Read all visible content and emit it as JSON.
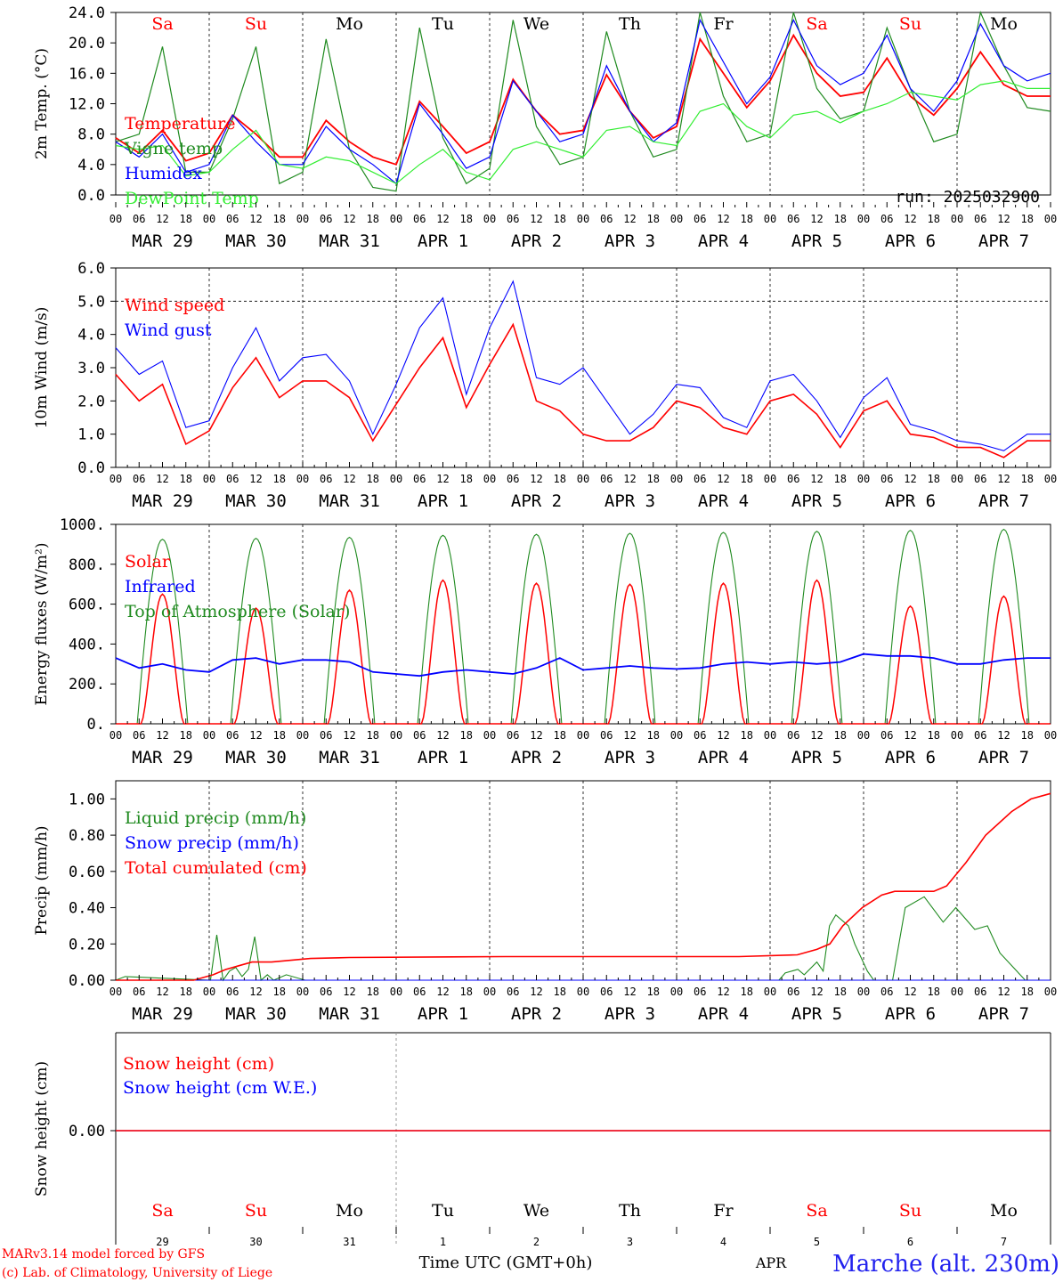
{
  "footer": {
    "credit_line1": "MARv3.14 model forced by GFS",
    "credit_line2": "(c) Lab. of Climatology, University of Liege",
    "xaxis_title": "Time UTC (GMT+0h)",
    "month": "APR",
    "station": "Marche (alt. 230m)"
  },
  "colors": {
    "red": "#ff0000",
    "green": "#1f8a1f",
    "blue": "#0000ff",
    "lightgreen": "#33ee33",
    "weekend": "#ff0000",
    "weekday": "#000000"
  },
  "days": {
    "weekdays": [
      "Sa",
      "Su",
      "Mo",
      "Tu",
      "We",
      "Th",
      "Fr",
      "Sa",
      "Su",
      "Mo"
    ],
    "weekend": [
      true,
      true,
      false,
      false,
      false,
      false,
      false,
      true,
      true,
      false
    ],
    "date_labels": [
      "MAR 29",
      "MAR 30",
      "MAR 31",
      "APR  1",
      "APR  2",
      "APR  3",
      "APR  4",
      "APR  5",
      "APR  6",
      "APR  7"
    ],
    "day_numbers": [
      "29",
      "30",
      "31",
      "1",
      "2",
      "3",
      "4",
      "5",
      "6",
      "7"
    ],
    "hour_ticks": [
      "00",
      "06",
      "12",
      "18"
    ],
    "final_tick": "00"
  },
  "chart_data": [
    {
      "type": "line",
      "ylabel": "2m Temp. (°C)",
      "ylim": [
        0,
        24
      ],
      "yticks": [
        "0.0",
        "4.0",
        "8.0",
        "12.0",
        "16.0",
        "20.0",
        "24.0"
      ],
      "annotation": "run: 2025032900",
      "x_unit": "hours since MAR 29 00 UTC",
      "series": [
        {
          "name": "Temperature",
          "color": "red",
          "x": [
            0,
            6,
            12,
            18,
            24,
            30,
            36,
            42,
            48,
            54,
            60,
            66,
            72,
            78,
            84,
            90,
            96,
            102,
            108,
            114,
            120,
            126,
            132,
            138,
            144,
            150,
            156,
            162,
            168,
            174,
            180,
            186,
            192,
            198,
            204,
            210,
            216,
            222,
            228,
            234,
            240
          ],
          "values": [
            7.5,
            5.5,
            8.5,
            4.5,
            5.5,
            10.5,
            8.0,
            5.0,
            5.0,
            9.8,
            7.0,
            5.0,
            4.0,
            12.3,
            9.0,
            5.5,
            7.0,
            15.2,
            11.0,
            8.0,
            8.5,
            15.8,
            11.0,
            7.5,
            9.0,
            20.5,
            16.0,
            11.5,
            15.0,
            21.0,
            16.0,
            13.0,
            13.5,
            18.0,
            13.0,
            10.5,
            14.0,
            18.8,
            14.5,
            13.0,
            13.0
          ]
        },
        {
          "name": "Vigne temp",
          "color": "green",
          "x": [
            0,
            6,
            12,
            18,
            24,
            30,
            36,
            42,
            48,
            54,
            60,
            66,
            72,
            78,
            84,
            90,
            96,
            102,
            108,
            114,
            120,
            126,
            132,
            138,
            144,
            150,
            156,
            162,
            168,
            174,
            180,
            186,
            192,
            198,
            204,
            210,
            216,
            222,
            228,
            234,
            240
          ],
          "values": [
            7.0,
            8.0,
            19.5,
            3.0,
            3.0,
            10.0,
            19.5,
            1.5,
            3.0,
            20.5,
            6.0,
            1.0,
            0.5,
            22.0,
            7.5,
            1.5,
            3.5,
            23.0,
            9.0,
            4.0,
            5.0,
            21.5,
            11.0,
            5.0,
            6.0,
            24.0,
            13.0,
            7.0,
            8.0,
            24.0,
            14.0,
            10.0,
            11.0,
            22.0,
            14.0,
            7.0,
            8.0,
            24.0,
            17.0,
            11.5,
            11.0
          ]
        },
        {
          "name": "Humidex",
          "color": "blue",
          "x": [
            0,
            6,
            12,
            18,
            24,
            30,
            36,
            42,
            48,
            54,
            60,
            66,
            72,
            78,
            84,
            90,
            96,
            102,
            108,
            114,
            120,
            126,
            132,
            138,
            144,
            150,
            156,
            162,
            168,
            174,
            180,
            186,
            192,
            198,
            204,
            210,
            216,
            222,
            228,
            234,
            240
          ],
          "values": [
            7.0,
            5.0,
            8.0,
            3.0,
            4.0,
            10.5,
            7.0,
            4.0,
            4.0,
            9.0,
            6.0,
            4.0,
            1.5,
            12.0,
            8.0,
            3.5,
            5.0,
            15.0,
            11.0,
            7.0,
            8.0,
            17.0,
            11.0,
            7.0,
            9.5,
            23.0,
            17.5,
            12.0,
            15.5,
            23.0,
            17.0,
            14.5,
            16.0,
            21.0,
            14.0,
            11.0,
            15.0,
            22.5,
            17.0,
            15.0,
            16.0
          ]
        },
        {
          "name": "DewPoint Temp",
          "color": "lightgreen",
          "x": [
            0,
            6,
            12,
            18,
            24,
            30,
            36,
            42,
            48,
            54,
            60,
            66,
            72,
            78,
            84,
            90,
            96,
            102,
            108,
            114,
            120,
            126,
            132,
            138,
            144,
            150,
            156,
            162,
            168,
            174,
            180,
            186,
            192,
            198,
            204,
            210,
            216,
            222,
            228,
            234,
            240
          ],
          "values": [
            6.5,
            6.0,
            6.5,
            2.5,
            3.0,
            6.0,
            8.5,
            4.0,
            3.5,
            5.0,
            4.5,
            3.0,
            1.5,
            4.0,
            6.0,
            3.0,
            2.0,
            6.0,
            7.0,
            6.0,
            5.0,
            8.5,
            9.0,
            7.0,
            6.5,
            11.0,
            12.0,
            9.0,
            7.5,
            10.5,
            11.0,
            9.5,
            11.0,
            12.0,
            13.5,
            13.0,
            12.5,
            14.5,
            15.0,
            14.0,
            14.0
          ]
        }
      ]
    },
    {
      "type": "line",
      "ylabel": "10m Wind (m/s)",
      "ylim": [
        0,
        6
      ],
      "yticks": [
        "0.0",
        "1.0",
        "2.0",
        "3.0",
        "4.0",
        "5.0",
        "6.0"
      ],
      "x_unit": "hours since MAR 29 00 UTC",
      "series": [
        {
          "name": "Wind speed",
          "color": "red",
          "x": [
            0,
            6,
            12,
            18,
            24,
            30,
            36,
            42,
            48,
            54,
            60,
            66,
            72,
            78,
            84,
            90,
            96,
            102,
            108,
            114,
            120,
            126,
            132,
            138,
            144,
            150,
            156,
            162,
            168,
            174,
            180,
            186,
            192,
            198,
            204,
            210,
            216,
            222,
            228,
            234,
            240
          ],
          "values": [
            2.8,
            2.0,
            2.5,
            0.7,
            1.1,
            2.4,
            3.3,
            2.1,
            2.6,
            2.6,
            2.1,
            0.8,
            1.9,
            3.0,
            3.9,
            1.8,
            3.1,
            4.3,
            2.0,
            1.7,
            1.0,
            0.8,
            0.8,
            1.2,
            2.0,
            1.8,
            1.2,
            1.0,
            2.0,
            2.2,
            1.6,
            0.6,
            1.7,
            2.0,
            1.0,
            0.9,
            0.6,
            0.6,
            0.3,
            0.8,
            0.8
          ]
        },
        {
          "name": "Wind gust",
          "color": "blue",
          "x": [
            0,
            6,
            12,
            18,
            24,
            30,
            36,
            42,
            48,
            54,
            60,
            66,
            72,
            78,
            84,
            90,
            96,
            102,
            108,
            114,
            120,
            126,
            132,
            138,
            144,
            150,
            156,
            162,
            168,
            174,
            180,
            186,
            192,
            198,
            204,
            210,
            216,
            222,
            228,
            234,
            240
          ],
          "values": [
            3.6,
            2.8,
            3.2,
            1.2,
            1.4,
            3.0,
            4.2,
            2.6,
            3.3,
            3.4,
            2.6,
            1.0,
            2.5,
            4.2,
            5.1,
            2.2,
            4.2,
            5.6,
            2.7,
            2.5,
            3.0,
            2.0,
            1.0,
            1.6,
            2.5,
            2.4,
            1.5,
            1.2,
            2.6,
            2.8,
            2.0,
            0.9,
            2.1,
            2.7,
            1.3,
            1.1,
            0.8,
            0.7,
            0.5,
            1.0,
            1.0
          ]
        }
      ]
    },
    {
      "type": "line",
      "ylabel": "Energy fluxes (W/m²)",
      "ylim": [
        0,
        1000
      ],
      "yticks": [
        "0.",
        "200.",
        "400.",
        "600.",
        "800.",
        "1000."
      ],
      "x_unit": "hours since MAR 29 00 UTC",
      "series": [
        {
          "name": "Solar",
          "color": "red",
          "daily_peaks": [
            650,
            580,
            670,
            720,
            705,
            700,
            705,
            720,
            590,
            640
          ]
        },
        {
          "name": "Infrared",
          "color": "blue",
          "x": [
            0,
            6,
            12,
            18,
            24,
            30,
            36,
            42,
            48,
            54,
            60,
            66,
            72,
            78,
            84,
            90,
            96,
            102,
            108,
            114,
            120,
            126,
            132,
            138,
            144,
            150,
            156,
            162,
            168,
            174,
            180,
            186,
            192,
            198,
            204,
            210,
            216,
            222,
            228,
            234,
            240
          ],
          "values": [
            330,
            280,
            300,
            270,
            260,
            320,
            330,
            300,
            320,
            320,
            310,
            260,
            250,
            240,
            260,
            270,
            260,
            250,
            280,
            330,
            270,
            280,
            290,
            280,
            275,
            280,
            300,
            310,
            300,
            310,
            300,
            310,
            350,
            340,
            340,
            330,
            300,
            300,
            320,
            330,
            330
          ]
        },
        {
          "name": "Top of Atmosphere (Solar)",
          "color": "green",
          "daily_peaks": [
            925,
            930,
            935,
            945,
            950,
            955,
            960,
            965,
            970,
            975
          ]
        }
      ]
    },
    {
      "type": "line",
      "ylabel": "Precip (mm/h)",
      "ylim": [
        0,
        1.1
      ],
      "yticks": [
        "0.00",
        "0.20",
        "0.40",
        "0.60",
        "0.80",
        "1.00"
      ],
      "x_unit": "hours since MAR 29 00 UTC",
      "series": [
        {
          "name": "Liquid precip (mm/h)",
          "color": "green",
          "x": [
            0,
            3,
            30,
            32,
            34,
            36,
            38,
            40,
            42,
            44,
            46,
            48,
            50,
            54,
            60,
            210,
            212,
            216,
            218,
            222,
            224,
            226,
            228,
            232,
            234,
            238,
            240,
            242,
            246,
            250,
            256,
            262,
            266,
            272,
            276,
            280,
            288,
            296
          ],
          "values": [
            0,
            0.02,
            0,
            0.25,
            0,
            0.05,
            0.07,
            0.02,
            0.06,
            0.24,
            0,
            0.03,
            0,
            0.03,
            0,
            0,
            0.04,
            0.06,
            0.03,
            0.1,
            0.05,
            0.3,
            0.36,
            0.3,
            0.2,
            0.05,
            0,
            0,
            0,
            0.4,
            0.46,
            0.32,
            0.4,
            0.28,
            0.3,
            0.15,
            0,
            0
          ]
        },
        {
          "name": "Snow precip (mm/h)",
          "color": "blue",
          "x": [
            0,
            240
          ],
          "values": [
            0,
            0
          ]
        },
        {
          "name": "Total cumulated (cm)",
          "color": "red",
          "x": [
            0,
            24,
            30,
            34,
            38,
            42,
            48,
            60,
            72,
            120,
            180,
            192,
            210,
            216,
            220,
            224,
            230,
            236,
            240,
            244,
            252,
            256,
            262,
            268,
            276,
            282,
            288
          ],
          "values": [
            0,
            0,
            0.03,
            0.06,
            0.08,
            0.1,
            0.1,
            0.12,
            0.125,
            0.13,
            0.13,
            0.13,
            0.14,
            0.17,
            0.2,
            0.3,
            0.4,
            0.47,
            0.49,
            0.49,
            0.49,
            0.52,
            0.65,
            0.8,
            0.93,
            1.0,
            1.03
          ]
        }
      ]
    },
    {
      "type": "line",
      "ylabel": "Snow height (cm)",
      "ytick": "0.00",
      "x_unit": "hours since MAR 29 00 UTC",
      "series": [
        {
          "name": "Snow height (cm)",
          "color": "red",
          "x": [
            0,
            240
          ],
          "values": [
            0,
            0
          ]
        },
        {
          "name": "Snow height (cm W.E.)",
          "color": "blue",
          "x": [
            0,
            240
          ],
          "values": [
            0,
            0
          ]
        }
      ]
    }
  ]
}
